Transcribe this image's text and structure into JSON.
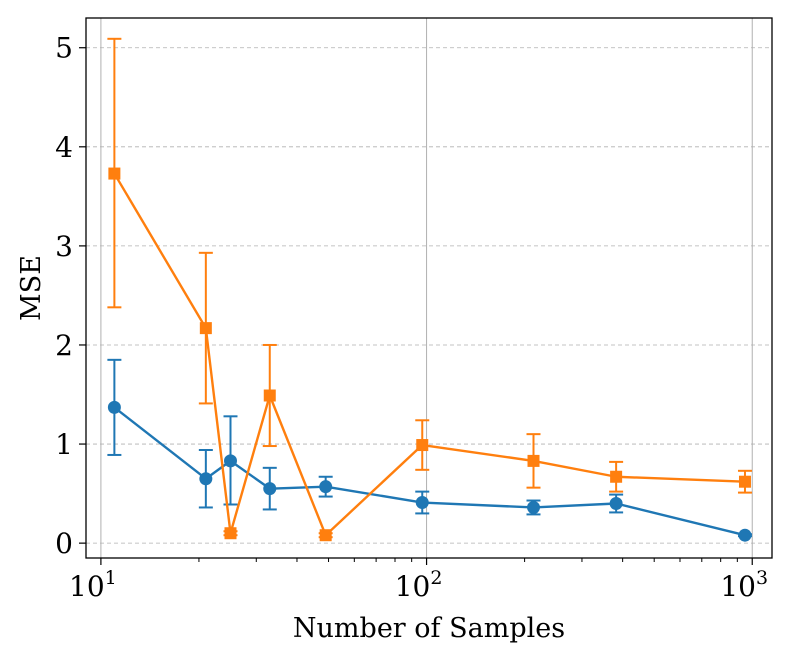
{
  "chart_data": {
    "type": "line",
    "xlabel": "Number of Samples",
    "ylabel": "MSE",
    "xscale": "log",
    "xlim": [
      9.0,
      1150
    ],
    "ylim": [
      -0.15,
      5.3
    ],
    "grid": "on",
    "xticks": [
      {
        "value": 10,
        "base": "10",
        "exp": "1"
      },
      {
        "value": 100,
        "base": "10",
        "exp": "2"
      },
      {
        "value": 1000,
        "base": "10",
        "exp": "3"
      }
    ],
    "yticks": [
      {
        "value": 0,
        "label": "0"
      },
      {
        "value": 1,
        "label": "1"
      },
      {
        "value": 2,
        "label": "2"
      },
      {
        "value": 3,
        "label": "3"
      },
      {
        "value": 4,
        "label": "4"
      },
      {
        "value": 5,
        "label": "5"
      }
    ],
    "series": [
      {
        "marker": "circle",
        "color": "#1f77b4",
        "x": [
          11,
          21,
          25,
          33,
          49,
          97,
          213,
          382,
          950
        ],
        "y": [
          1.37,
          0.65,
          0.83,
          0.55,
          0.57,
          0.41,
          0.36,
          0.4,
          0.08
        ],
        "err_low": [
          0.89,
          0.36,
          0.39,
          0.34,
          0.47,
          0.3,
          0.29,
          0.31,
          0.07
        ],
        "err_high": [
          1.85,
          0.94,
          1.28,
          0.76,
          0.67,
          0.52,
          0.43,
          0.49,
          0.09
        ]
      },
      {
        "marker": "square",
        "color": "#ff7f0e",
        "x": [
          11,
          21,
          25,
          33,
          49,
          97,
          213,
          382,
          950
        ],
        "y": [
          3.73,
          2.17,
          0.1,
          1.49,
          0.08,
          0.99,
          0.83,
          0.67,
          0.62
        ],
        "err_low": [
          2.38,
          1.41,
          0.08,
          0.98,
          0.06,
          0.74,
          0.56,
          0.52,
          0.51
        ],
        "err_high": [
          5.09,
          2.93,
          0.12,
          2.0,
          0.1,
          1.24,
          1.1,
          0.82,
          0.73
        ]
      }
    ]
  }
}
